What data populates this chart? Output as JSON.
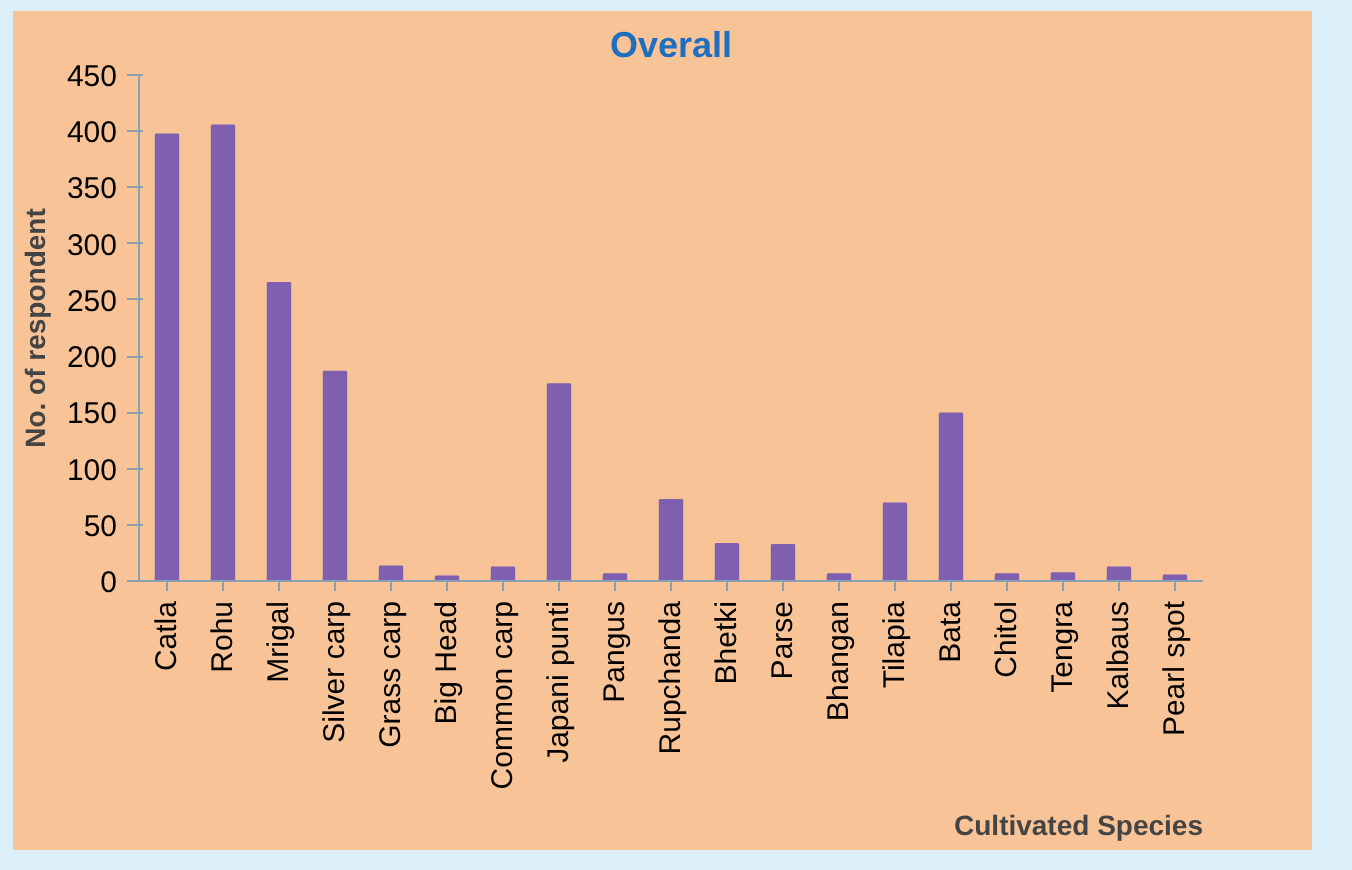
{
  "chart_data": {
    "type": "bar",
    "title": "Overall",
    "xlabel": "Cultivated Species",
    "ylabel": "No. of respondent",
    "categories": [
      "Catla",
      "Rohu",
      "Mrigal",
      "Silver carp",
      "Grass carp",
      "Big Head",
      "Common carp",
      "Japani punti",
      "Pangus",
      "Rupchanda",
      "Bhetki",
      "Parse",
      "Bhangan",
      "Tilapia",
      "Bata",
      "Chitol",
      "Tengra",
      "Kalbaus",
      "Pearl spot"
    ],
    "values": [
      397,
      405,
      265,
      186,
      13,
      4,
      12,
      175,
      6,
      72,
      33,
      32,
      6,
      69,
      149,
      6,
      7,
      12,
      5
    ],
    "color": "#7f5fb0",
    "ylim": [
      0,
      450
    ],
    "yticks": [
      0,
      50,
      100,
      150,
      200,
      250,
      300,
      350,
      400,
      450
    ],
    "grid": false
  }
}
